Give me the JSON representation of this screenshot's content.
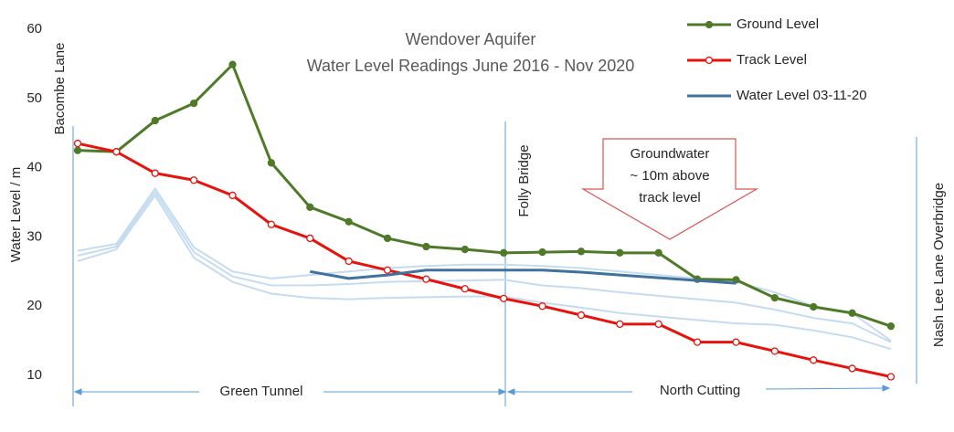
{
  "chart_data": {
    "type": "line",
    "title": "Wendover Aquifer",
    "subtitle": "Water Level Readings June 2016 - Nov 2020",
    "y_label": "Water Level / m",
    "categories": [
      null,
      null,
      null,
      null,
      null,
      null,
      null,
      null,
      null,
      null,
      null,
      null,
      null,
      null,
      null,
      null,
      null,
      null,
      null,
      null,
      null,
      null
    ],
    "ylim": [
      10,
      60
    ],
    "yticks": [
      10,
      20,
      30,
      40,
      50,
      60
    ],
    "series": [
      {
        "name": "Ground Level",
        "color": "#4f7a28",
        "markers": "filled",
        "values": [
          42.5,
          42.3,
          46.8,
          49.3,
          54.9,
          40.7,
          34.3,
          32.2,
          29.8,
          28.6,
          28.2,
          27.7,
          27.8,
          27.9,
          27.7,
          27.7,
          23.9,
          23.8,
          21.2,
          19.9,
          19.0,
          17.1
        ]
      },
      {
        "name": "Track Level",
        "color": "#e8120c",
        "markers": "hollow",
        "values": [
          43.5,
          42.3,
          39.2,
          38.2,
          36.0,
          31.8,
          29.8,
          26.5,
          25.2,
          23.9,
          22.5,
          21.1,
          20.0,
          18.7,
          17.4,
          17.4,
          14.8,
          14.8,
          13.5,
          12.2,
          11.0,
          9.8
        ]
      },
      {
        "name": "Water Level 03-11-20",
        "color": "#41719c",
        "markers": "none",
        "values": [
          null,
          null,
          null,
          null,
          null,
          null,
          25.0,
          24.0,
          24.5,
          25.2,
          25.2,
          25.2,
          25.2,
          24.9,
          24.5,
          24.1,
          23.7,
          23.3,
          null,
          null,
          null,
          null
        ]
      }
    ],
    "background_series": [
      {
        "color": "#c5dcf0",
        "values": [
          28.0,
          29.0,
          37.0,
          28.5,
          25.0,
          24.0,
          24.5,
          25.0,
          25.5,
          25.8,
          26.0,
          26.0,
          25.8,
          25.5,
          25.0,
          24.5,
          24.0,
          23.5,
          22.0,
          20.0,
          19.0,
          15.0
        ]
      },
      {
        "color": "#c5dcf0",
        "values": [
          27.3,
          28.6,
          36.5,
          27.8,
          24.3,
          23.0,
          23.0,
          23.2,
          23.5,
          23.6,
          23.7,
          23.8,
          23.0,
          22.6,
          22.0,
          21.5,
          21.0,
          20.5,
          19.5,
          18.3,
          17.5,
          14.8
        ]
      },
      {
        "color": "#c5dcf0",
        "values": [
          26.5,
          28.2,
          36.0,
          27.0,
          23.5,
          21.8,
          21.2,
          21.0,
          21.2,
          21.3,
          21.4,
          21.4,
          20.5,
          19.8,
          19.0,
          18.5,
          18.0,
          17.5,
          17.3,
          16.5,
          15.5,
          13.8
        ]
      }
    ],
    "legend_position": "upper right",
    "annotations": {
      "locations": [
        "Bacombe Lane",
        "Folly Bridge",
        "Nash Lee Lane Overbridge"
      ],
      "callout": [
        "Groundwater",
        "~ 10m above",
        "track level"
      ],
      "sections": [
        "Green Tunnel",
        "North Cutting"
      ]
    }
  }
}
